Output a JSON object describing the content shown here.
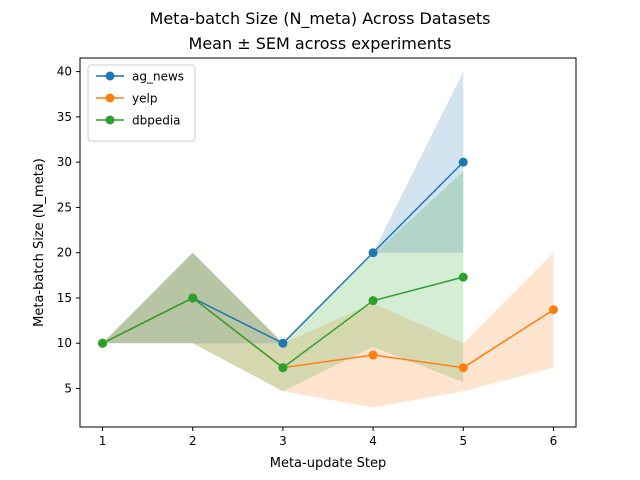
{
  "chart_data": {
    "type": "line",
    "title": "Meta-batch Size (N_meta) Across Datasets",
    "subtitle": "Mean ± SEM across experiments",
    "xlabel": "Meta-update Step",
    "ylabel": "Meta-batch Size (N_meta)",
    "xlim": [
      0.75,
      6.25
    ],
    "ylim": [
      0.75,
      41.5
    ],
    "xticks": [
      "1",
      "2",
      "3",
      "4",
      "5",
      "6"
    ],
    "yticks": [
      "5",
      "10",
      "15",
      "20",
      "25",
      "30",
      "35",
      "40"
    ],
    "grid": false,
    "legend_position": "top-left",
    "series": [
      {
        "name": "ag_news",
        "color": "#1f77b4",
        "x": [
          1,
          2,
          3,
          4,
          5
        ],
        "y": [
          10,
          15,
          10,
          20,
          30
        ],
        "lower": [
          10,
          10,
          10,
          20,
          20
        ],
        "upper": [
          10,
          20,
          10,
          20,
          40
        ]
      },
      {
        "name": "yelp",
        "color": "#ff7f0e",
        "x": [
          1,
          2,
          3,
          4,
          5,
          6
        ],
        "y": [
          10,
          15,
          7.3,
          8.7,
          7.3,
          13.7
        ],
        "lower": [
          10,
          10,
          4.7,
          2.9,
          4.7,
          7.3
        ],
        "upper": [
          10,
          20,
          10,
          14.4,
          10,
          20
        ]
      },
      {
        "name": "dbpedia",
        "color": "#2ca02c",
        "x": [
          1,
          2,
          3,
          4,
          5
        ],
        "y": [
          10,
          15,
          7.3,
          14.7,
          17.3
        ],
        "lower": [
          10,
          10,
          4.7,
          9.6,
          5.7
        ],
        "upper": [
          10,
          20,
          10,
          19.8,
          29
        ]
      }
    ]
  }
}
